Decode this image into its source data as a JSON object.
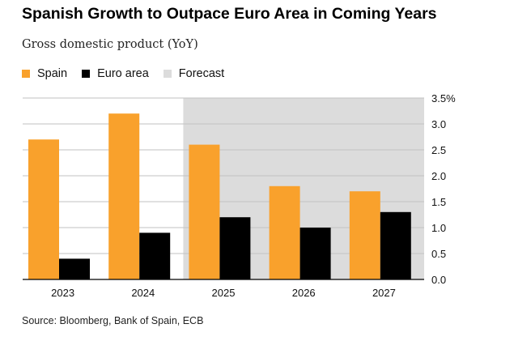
{
  "header": {
    "title": "Spanish Growth to Outpace Euro Area in Coming Years",
    "subtitle": "Gross domestic product (YoY)"
  },
  "legend": {
    "items": [
      {
        "label": "Spain",
        "color": "#f9a12c"
      },
      {
        "label": "Euro area",
        "color": "#000000"
      },
      {
        "label": "Forecast",
        "color": "#dcdcdc"
      }
    ]
  },
  "footer": {
    "source": "Source: Bloomberg, Bank of Spain, ECB"
  },
  "chart_data": {
    "type": "bar",
    "categories": [
      "2023",
      "2024",
      "2025",
      "2026",
      "2027"
    ],
    "series": [
      {
        "name": "Spain",
        "color": "#f9a12c",
        "values": [
          2.7,
          3.2,
          2.6,
          1.8,
          1.7
        ]
      },
      {
        "name": "Euro area",
        "color": "#000000",
        "values": [
          0.4,
          0.9,
          1.2,
          1.0,
          1.3
        ]
      }
    ],
    "forecast_categories": [
      "2025",
      "2026",
      "2027"
    ],
    "forecast_color": "#dcdcdc",
    "ylim": [
      0,
      3.5
    ],
    "yticks": [
      0,
      0.5,
      1,
      1.5,
      2,
      2.5,
      3,
      3.5
    ],
    "ytick_labels": [
      "0.0",
      "0.5",
      "1.0",
      "1.5",
      "2.0",
      "2.5",
      "3.0",
      "3.5%"
    ],
    "yaxis_position": "right",
    "grid": true
  }
}
